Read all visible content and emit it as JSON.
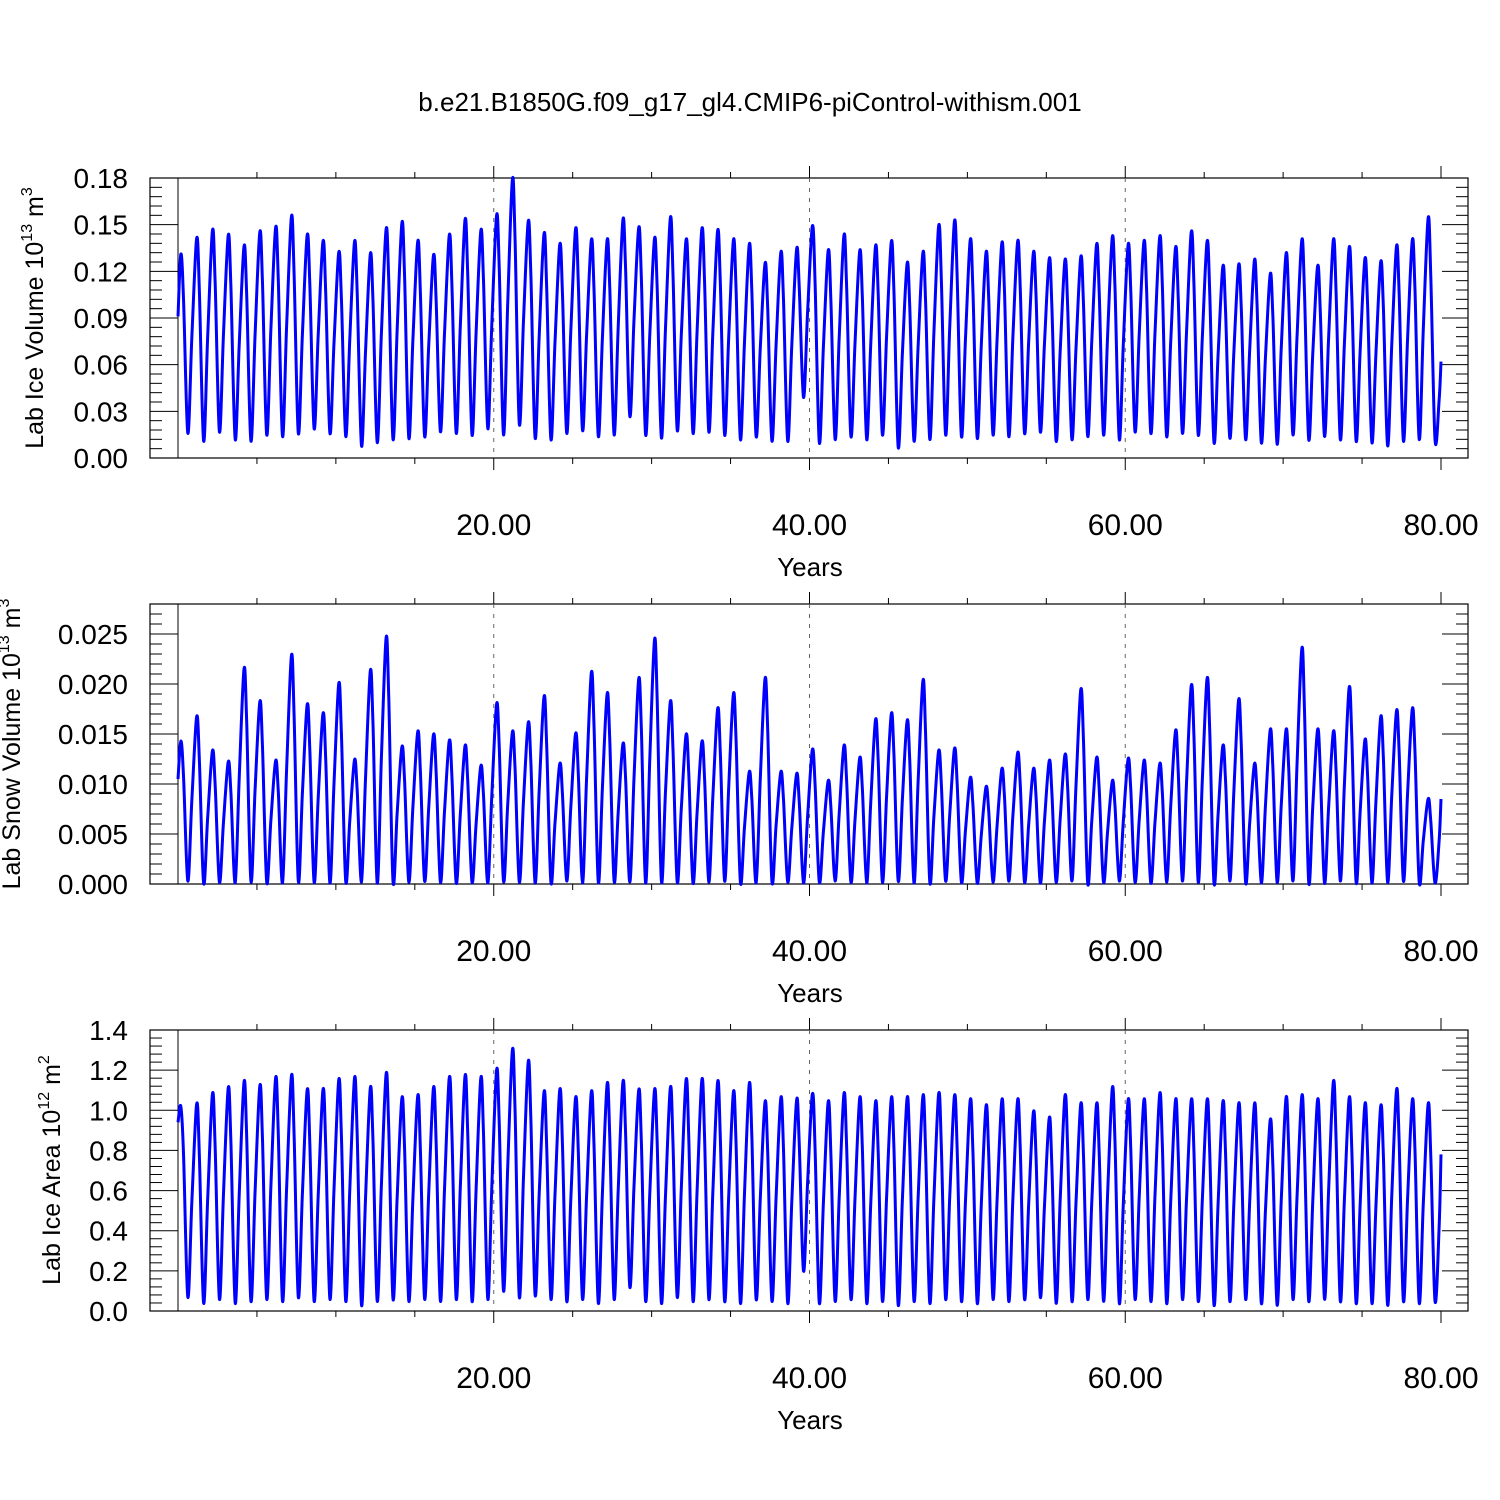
{
  "title": "b.e21.B1850G.f09_g17_gl4.CMIP6-piControl-withism.001",
  "colors": {
    "series": "#0000ff",
    "axis": "#000000",
    "grid": "#666666"
  },
  "chart_data": [
    {
      "type": "line",
      "ylabel": "Lab Ice Volume 10",
      "ylabel_exp": "13",
      "ylabel_unit": " m",
      "ylabel_unit_exp": "3",
      "xlabel": "Years",
      "xlim": [
        0,
        80
      ],
      "ylim": [
        0,
        0.18
      ],
      "xticks": [
        "20.00",
        "40.00",
        "60.00",
        "80.00"
      ],
      "xtick_values": [
        20,
        40,
        60,
        80
      ],
      "yticks": [
        "0.00",
        "0.03",
        "0.06",
        "0.09",
        "0.12",
        "0.15",
        "0.18"
      ],
      "ytick_values": [
        0,
        0.03,
        0.06,
        0.09,
        0.12,
        0.15,
        0.18
      ],
      "grid": "vertical dashed at x ticks",
      "series": [
        {
          "seasonal_cycle": "annual",
          "start": {
            "x": 0.0,
            "y": 0.091
          },
          "end": {
            "x": 80.0,
            "y": 0.062
          },
          "annual_max": [
            0.131,
            0.141,
            0.146,
            0.143,
            0.136,
            0.145,
            0.148,
            0.155,
            0.143,
            0.139,
            0.132,
            0.139,
            0.131,
            0.147,
            0.151,
            0.139,
            0.13,
            0.143,
            0.153,
            0.146,
            0.156,
            0.179,
            0.152,
            0.144,
            0.137,
            0.147,
            0.14,
            0.14,
            0.153,
            0.148,
            0.141,
            0.154,
            0.14,
            0.147,
            0.146,
            0.14,
            0.137,
            0.125,
            0.132,
            0.134,
            0.149,
            0.133,
            0.143,
            0.133,
            0.136,
            0.139,
            0.125,
            0.132,
            0.149,
            0.152,
            0.14,
            0.132,
            0.138,
            0.139,
            0.132,
            0.128,
            0.127,
            0.129,
            0.137,
            0.142,
            0.137,
            0.139,
            0.142,
            0.135,
            0.145,
            0.139,
            0.123,
            0.124,
            0.127,
            0.118,
            0.131,
            0.14,
            0.123,
            0.14,
            0.135,
            0.128,
            0.126,
            0.136,
            0.14,
            0.154
          ],
          "annual_min": [
            0.016,
            0.011,
            0.017,
            0.012,
            0.011,
            0.015,
            0.014,
            0.016,
            0.019,
            0.016,
            0.014,
            0.008,
            0.01,
            0.012,
            0.013,
            0.014,
            0.017,
            0.016,
            0.015,
            0.019,
            0.015,
            0.022,
            0.013,
            0.012,
            0.016,
            0.018,
            0.014,
            0.015,
            0.027,
            0.015,
            0.013,
            0.018,
            0.016,
            0.017,
            0.015,
            0.012,
            0.014,
            0.011,
            0.011,
            0.039,
            0.01,
            0.012,
            0.014,
            0.012,
            0.015,
            0.007,
            0.011,
            0.012,
            0.015,
            0.014,
            0.013,
            0.015,
            0.014,
            0.016,
            0.017,
            0.011,
            0.012,
            0.014,
            0.015,
            0.012,
            0.017,
            0.016,
            0.014,
            0.016,
            0.015,
            0.01,
            0.013,
            0.012,
            0.01,
            0.009,
            0.015,
            0.012,
            0.014,
            0.012,
            0.011,
            0.01,
            0.008,
            0.011,
            0.012,
            0.012
          ]
        }
      ]
    },
    {
      "type": "line",
      "ylabel": "Lab Snow Volume 10",
      "ylabel_exp": "13",
      "ylabel_unit": " m",
      "ylabel_unit_exp": "3",
      "xlabel": "Years",
      "xlim": [
        0,
        80
      ],
      "ylim": [
        0,
        0.028
      ],
      "xticks": [
        "20.00",
        "40.00",
        "60.00",
        "80.00"
      ],
      "xtick_values": [
        20,
        40,
        60,
        80
      ],
      "yticks": [
        "0.000",
        "0.005",
        "0.010",
        "0.015",
        "0.020",
        "0.025"
      ],
      "ytick_values": [
        0,
        0.005,
        0.01,
        0.015,
        0.02,
        0.025
      ],
      "grid": "vertical dashed at x ticks",
      "series": [
        {
          "seasonal_cycle": "annual",
          "start": {
            "x": 0.0,
            "y": 0.0105
          },
          "end": {
            "x": 80.0,
            "y": 0.0085
          },
          "annual_max": [
            0.0143,
            0.0167,
            0.0133,
            0.0122,
            0.0215,
            0.0182,
            0.0123,
            0.0228,
            0.0179,
            0.017,
            0.02,
            0.0124,
            0.0213,
            0.0246,
            0.0137,
            0.0152,
            0.0149,
            0.0143,
            0.0138,
            0.0118,
            0.018,
            0.0152,
            0.0161,
            0.0187,
            0.012,
            0.015,
            0.0211,
            0.019,
            0.014,
            0.0205,
            0.0244,
            0.0182,
            0.0149,
            0.0142,
            0.0175,
            0.019,
            0.0112,
            0.0205,
            0.0112,
            0.011,
            0.0134,
            0.0103,
            0.0138,
            0.0126,
            0.0164,
            0.017,
            0.0163,
            0.0203,
            0.0133,
            0.0135,
            0.0106,
            0.0097,
            0.0115,
            0.0131,
            0.0115,
            0.0123,
            0.0129,
            0.0194,
            0.0126,
            0.0103,
            0.0125,
            0.0123,
            0.012,
            0.0153,
            0.0198,
            0.0205,
            0.0138,
            0.0184,
            0.012,
            0.0154,
            0.0154,
            0.0235,
            0.0154,
            0.0152,
            0.0196,
            0.0144,
            0.0167,
            0.0173,
            0.0175,
            0.0085
          ],
          "annual_min": [
            0.0003,
            0.0001,
            0.0002,
            0.0001,
            0.0003,
            0.0002,
            0.0001,
            0.0003,
            0.0002,
            0.0001,
            0.0003,
            0.0002,
            0.0001,
            0.0003,
            0.0002,
            0.0003,
            0.0002,
            0.0001,
            0.0002,
            0.0001,
            0.0003,
            0.0002,
            0.0001,
            0.0002,
            0.0003,
            0.0001,
            0.0002,
            0.0003,
            0.0002,
            0.0001,
            0.0003,
            0.0002,
            0.0001,
            0.0002,
            0.0003,
            0.0002,
            0.0001,
            0.0003,
            0.0002,
            0.0001,
            0.0002,
            0.0003,
            0.0002,
            0.0001,
            0.0002,
            0.0003,
            0.0001,
            0.0002,
            0.0003,
            0.0002,
            0.0001,
            0.0002,
            0.0003,
            0.0002,
            0.0001,
            0.0002,
            0.0003,
            0.0001,
            0.0002,
            0.0003,
            0.0002,
            0.0001,
            0.0002,
            0.0003,
            0.0002,
            0.0001,
            0.0003,
            0.0002,
            0.0001,
            0.0002,
            0.0003,
            0.0002,
            0.0001,
            0.0003,
            0.0002,
            0.0001,
            0.0002,
            0.0003,
            0.0002,
            0.0001
          ]
        }
      ]
    },
    {
      "type": "line",
      "ylabel": "Lab Ice Area 10",
      "ylabel_exp": "12",
      "ylabel_unit": " m",
      "ylabel_unit_exp": "2",
      "xlabel": "Years",
      "xlim": [
        0,
        80
      ],
      "ylim": [
        0,
        1.4
      ],
      "xticks": [
        "20.00",
        "40.00",
        "60.00",
        "80.00"
      ],
      "xtick_values": [
        20,
        40,
        60,
        80
      ],
      "yticks": [
        "0.0",
        "0.2",
        "0.4",
        "0.6",
        "0.8",
        "1.0",
        "1.2",
        "1.4"
      ],
      "ytick_values": [
        0,
        0.2,
        0.4,
        0.6,
        0.8,
        1.0,
        1.2,
        1.4
      ],
      "grid": "vertical dashed at x ticks",
      "series": [
        {
          "seasonal_cycle": "annual",
          "start": {
            "x": 0.0,
            "y": 0.94
          },
          "end": {
            "x": 80.0,
            "y": 0.78
          },
          "annual_max": [
            1.02,
            1.03,
            1.08,
            1.11,
            1.14,
            1.12,
            1.16,
            1.17,
            1.1,
            1.1,
            1.15,
            1.16,
            1.11,
            1.18,
            1.06,
            1.07,
            1.11,
            1.16,
            1.17,
            1.16,
            1.2,
            1.3,
            1.24,
            1.09,
            1.1,
            1.06,
            1.09,
            1.13,
            1.14,
            1.1,
            1.1,
            1.11,
            1.15,
            1.15,
            1.14,
            1.09,
            1.13,
            1.04,
            1.06,
            1.05,
            1.08,
            1.04,
            1.08,
            1.06,
            1.04,
            1.06,
            1.06,
            1.07,
            1.08,
            1.07,
            1.05,
            1.02,
            1.05,
            1.05,
            0.99,
            0.96,
            1.07,
            1.03,
            1.03,
            1.11,
            1.05,
            1.05,
            1.08,
            1.05,
            1.05,
            1.05,
            1.04,
            1.03,
            1.03,
            0.95,
            1.06,
            1.07,
            1.05,
            1.14,
            1.06,
            1.03,
            1.02,
            1.1,
            1.05,
            1.03
          ],
          "annual_min": [
            0.07,
            0.04,
            0.06,
            0.04,
            0.05,
            0.06,
            0.05,
            0.07,
            0.05,
            0.06,
            0.05,
            0.03,
            0.05,
            0.06,
            0.05,
            0.06,
            0.05,
            0.06,
            0.05,
            0.06,
            0.1,
            0.07,
            0.08,
            0.06,
            0.05,
            0.06,
            0.04,
            0.06,
            0.12,
            0.05,
            0.04,
            0.07,
            0.05,
            0.06,
            0.05,
            0.04,
            0.06,
            0.05,
            0.04,
            0.2,
            0.04,
            0.05,
            0.06,
            0.04,
            0.05,
            0.03,
            0.05,
            0.04,
            0.06,
            0.05,
            0.04,
            0.06,
            0.05,
            0.06,
            0.07,
            0.04,
            0.05,
            0.06,
            0.05,
            0.04,
            0.06,
            0.05,
            0.04,
            0.06,
            0.05,
            0.03,
            0.05,
            0.06,
            0.04,
            0.03,
            0.06,
            0.05,
            0.06,
            0.05,
            0.04,
            0.04,
            0.03,
            0.05,
            0.04,
            0.05
          ]
        }
      ]
    }
  ]
}
